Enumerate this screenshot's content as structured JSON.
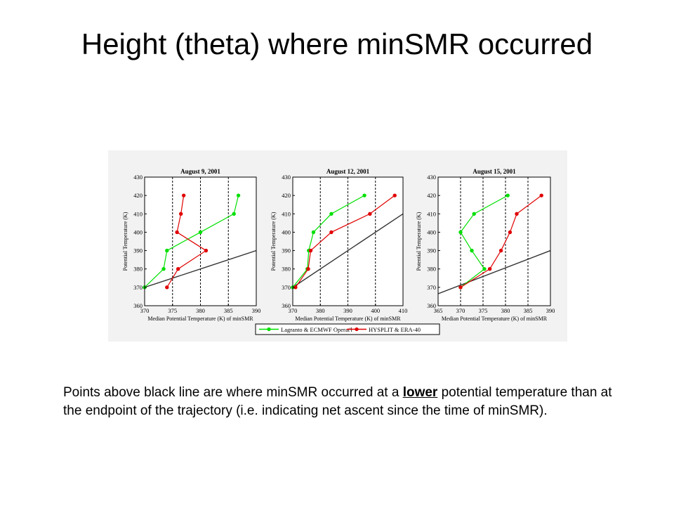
{
  "slide": {
    "title": "Height (theta) where minSMR occurred",
    "caption_before": "Points above black line are where minSMR occurred at a ",
    "caption_emphasis": "lower",
    "caption_after": " potential temperature than at the endpoint of the trajectory (i.e. indicating net ascent since the time of minSMR)."
  },
  "legend": {
    "entries": [
      {
        "label": "Lagranto & ECMWF Operat'l",
        "color": "#00e000"
      },
      {
        "label": "HYSPLIT & ERA-40",
        "color": "#e00000"
      }
    ]
  },
  "chart_data": [
    {
      "type": "line",
      "title": "August 9, 2001",
      "xlabel": "Median Potential Temperature (K) of minSMR",
      "ylabel": "Potential Temperature (K)",
      "xlim": [
        370,
        390
      ],
      "ylim": [
        360,
        430
      ],
      "xticks": [
        370,
        375,
        380,
        385,
        390
      ],
      "yticks": [
        360,
        370,
        380,
        390,
        400,
        410,
        420,
        430
      ],
      "vgrid": [
        375,
        380,
        385
      ],
      "reference_line": [
        [
          370,
          370
        ],
        [
          390,
          390
        ]
      ],
      "series": [
        {
          "name": "Lagranto & ECMWF Operat'l",
          "color": "#00e000",
          "points": [
            [
              370,
              370
            ],
            [
              373.4,
              380
            ],
            [
              374,
              390
            ],
            [
              380,
              400
            ],
            [
              386,
              410
            ],
            [
              386.8,
              420
            ]
          ]
        },
        {
          "name": "HYSPLIT & ERA-40",
          "color": "#e00000",
          "points": [
            [
              374,
              370
            ],
            [
              376,
              380
            ],
            [
              381,
              390
            ],
            [
              375.8,
              400
            ],
            [
              376.5,
              410
            ],
            [
              377,
              420
            ]
          ]
        }
      ]
    },
    {
      "type": "line",
      "title": "August 12, 2001",
      "xlabel": "Median Potential Temperature (K) of minSMR",
      "ylabel": "Potential Temperature (K)",
      "xlim": [
        370,
        410
      ],
      "ylim": [
        360,
        430
      ],
      "xticks": [
        370,
        380,
        390,
        400,
        410
      ],
      "yticks": [
        360,
        370,
        380,
        390,
        400,
        410,
        420,
        430
      ],
      "vgrid": [
        380,
        390,
        400
      ],
      "reference_line": [
        [
          370,
          370
        ],
        [
          410,
          410
        ]
      ],
      "series": [
        {
          "name": "Lagranto & ECMWF Operat'l",
          "color": "#00e000",
          "points": [
            [
              370,
              370
            ],
            [
              375.3,
              380
            ],
            [
              375.8,
              390
            ],
            [
              377.5,
              400
            ],
            [
              384,
              410
            ],
            [
              396,
              420
            ]
          ]
        },
        {
          "name": "HYSPLIT & ERA-40",
          "color": "#e00000",
          "points": [
            [
              371,
              370
            ],
            [
              375.6,
              380
            ],
            [
              376.5,
              390
            ],
            [
              384,
              400
            ],
            [
              398,
              410
            ],
            [
              407,
              420
            ]
          ]
        }
      ]
    },
    {
      "type": "line",
      "title": "August 15, 2001",
      "xlabel": "Median Potential Temperature (K) of minSMR",
      "ylabel": "Potential Temperature (K)",
      "xlim": [
        365,
        390
      ],
      "ylim": [
        360,
        430
      ],
      "xticks": [
        365,
        370,
        375,
        380,
        385,
        390
      ],
      "yticks": [
        360,
        370,
        380,
        390,
        400,
        410,
        420,
        430
      ],
      "vgrid": [
        370,
        375,
        380,
        385
      ],
      "reference_line": [
        [
          365,
          366.5
        ],
        [
          390,
          390
        ]
      ],
      "series": [
        {
          "name": "Lagranto & ECMWF Operat'l",
          "color": "#00e000",
          "points": [
            [
              370,
              370
            ],
            [
              375.3,
              380
            ],
            [
              372.5,
              390
            ],
            [
              370,
              400
            ],
            [
              373,
              410
            ],
            [
              380.5,
              420
            ]
          ]
        },
        {
          "name": "HYSPLIT & ERA-40",
          "color": "#e00000",
          "points": [
            [
              370,
              370
            ],
            [
              376.5,
              380
            ],
            [
              379,
              390
            ],
            [
              381,
              400
            ],
            [
              382.5,
              410
            ],
            [
              388,
              420
            ]
          ]
        }
      ]
    }
  ]
}
